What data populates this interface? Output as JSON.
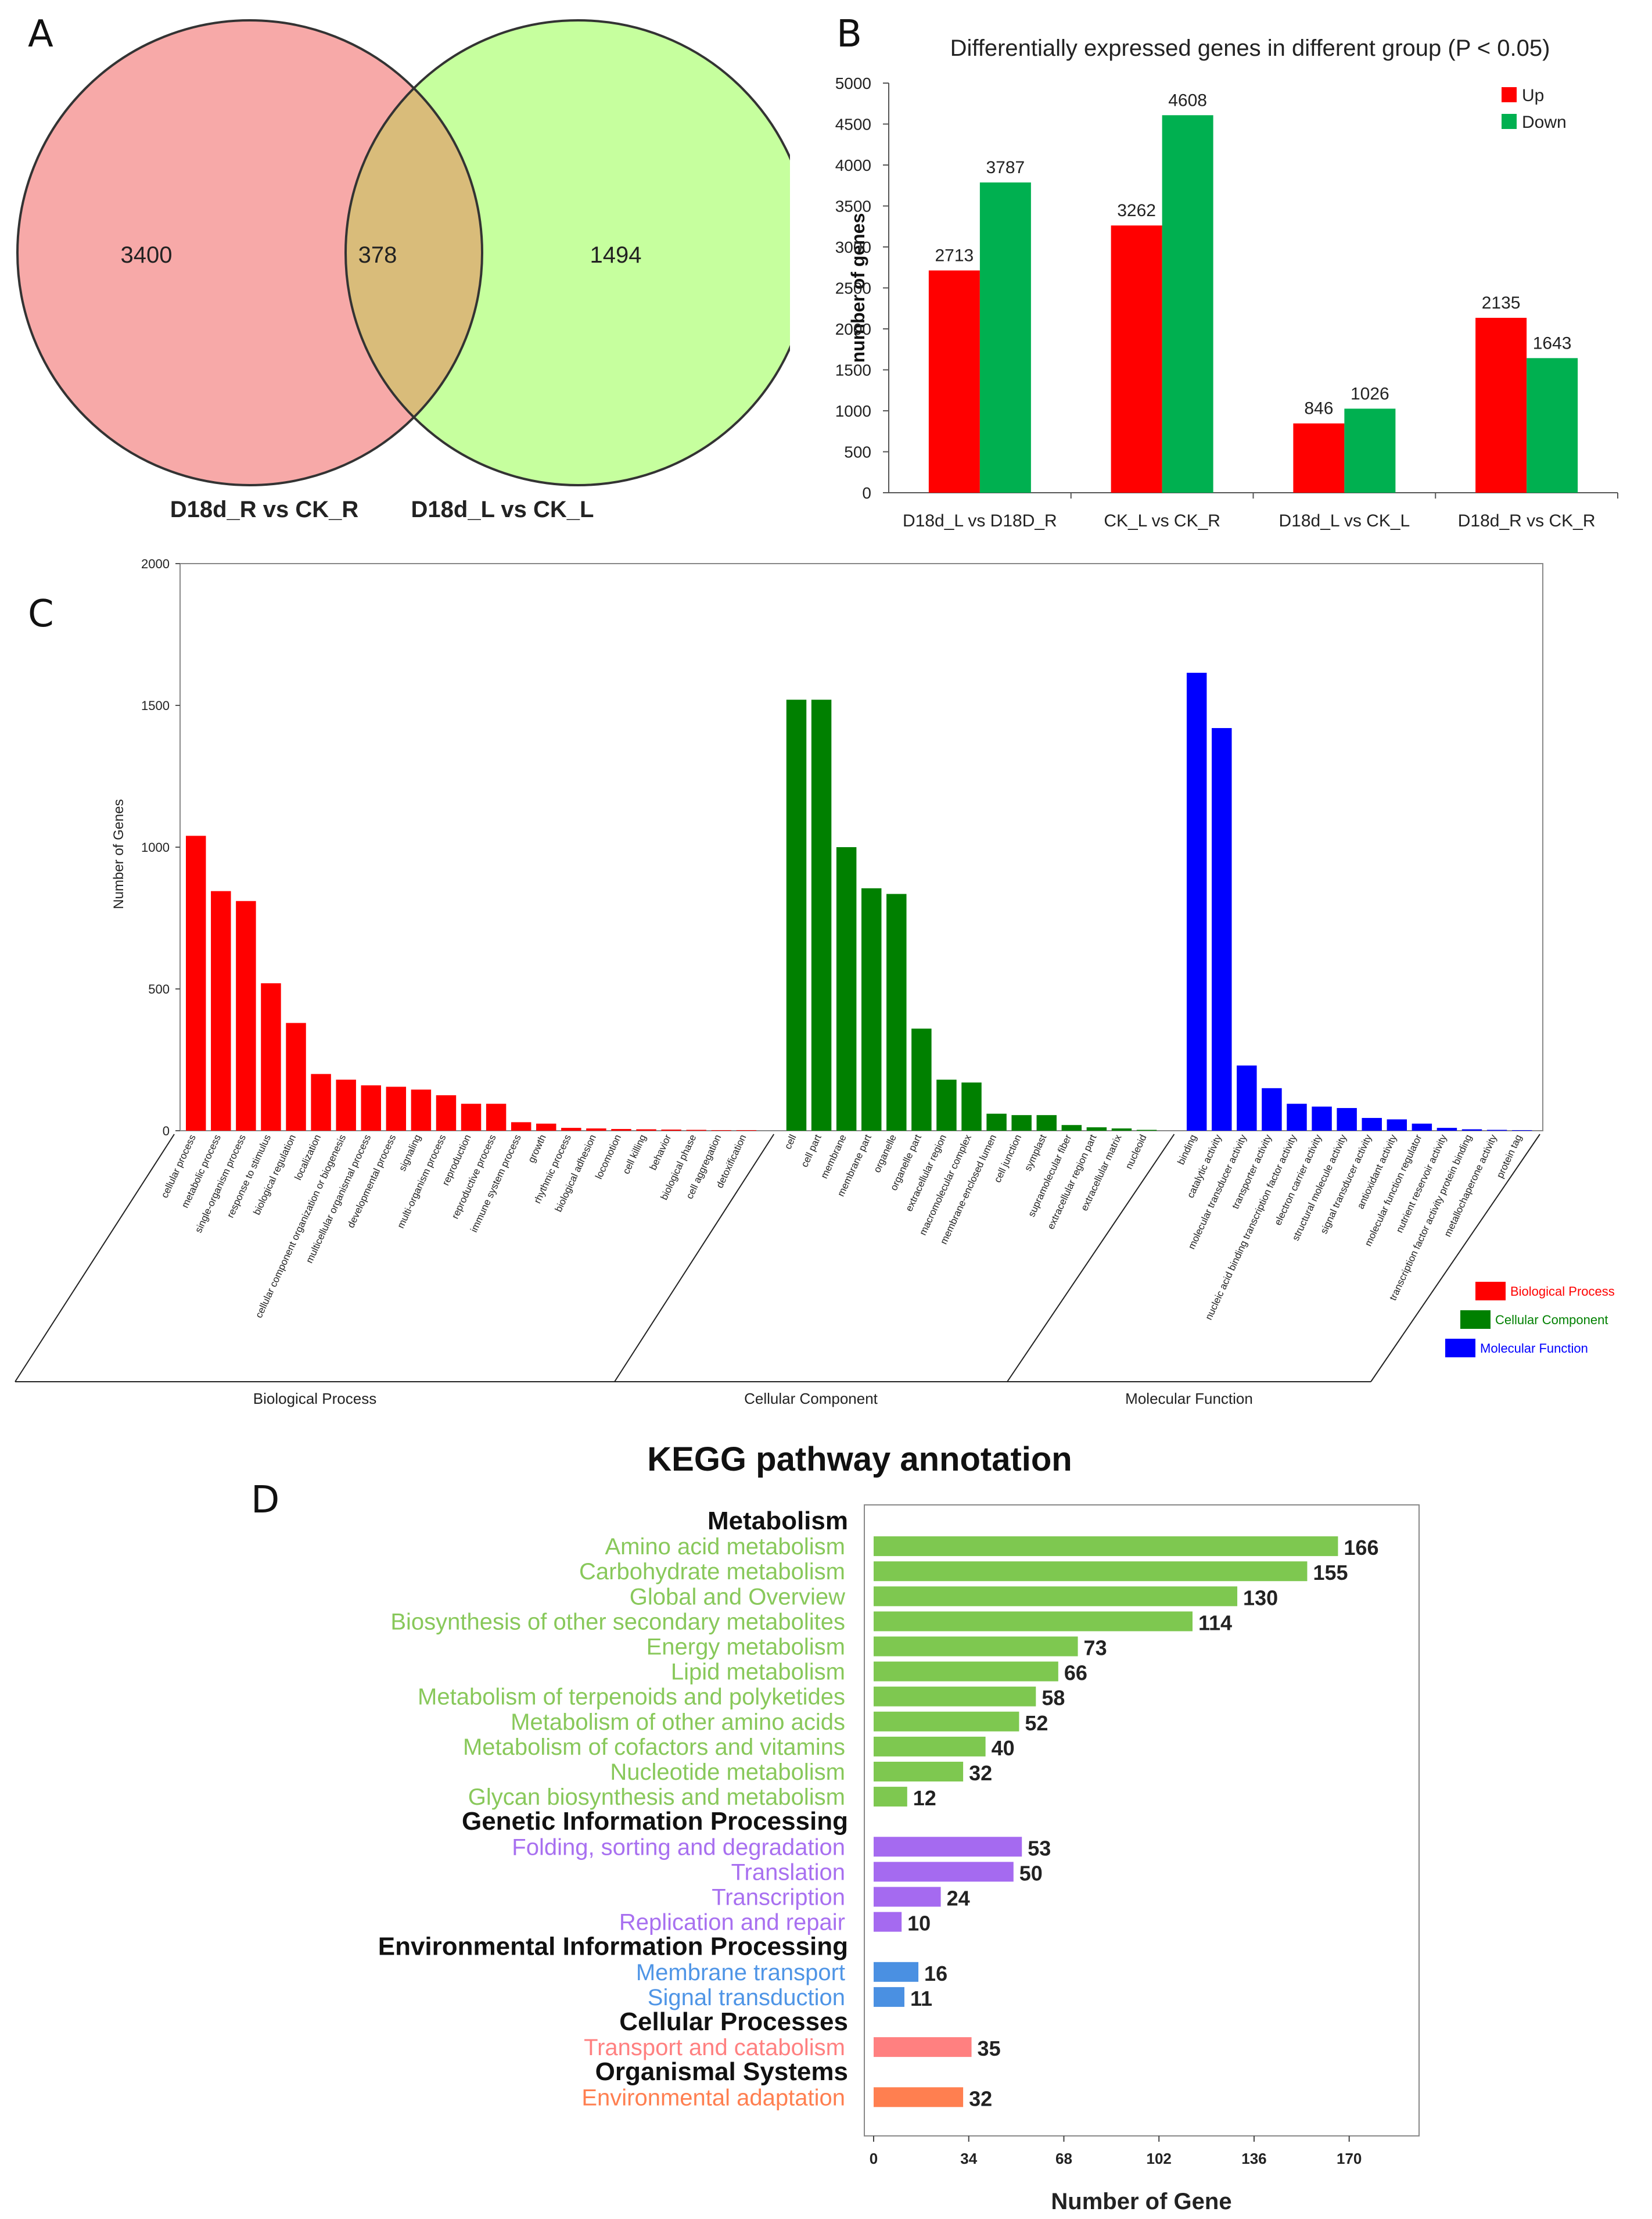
{
  "panels": {
    "a": "A",
    "b": "B",
    "c": "C",
    "d": "D"
  },
  "chart_data": [
    {
      "type": "venn",
      "sets": [
        {
          "label": "D18d_R vs CK_R",
          "only": "3400",
          "color": "#f7a9a8"
        },
        {
          "label": "D18d_L vs CK_L",
          "only": "1494",
          "color": "#c6ff9e"
        }
      ],
      "intersection": "378",
      "intersection_color": "#d9bc7a"
    },
    {
      "type": "bar",
      "title": "Differentially expressed genes in different group (P < 0.05)",
      "ylabel": "number of genes",
      "xlabel": "",
      "ylim": [
        0,
        5000
      ],
      "yticks": [
        "0",
        "500",
        "1000",
        "1500",
        "2000",
        "2500",
        "3000",
        "3500",
        "4000",
        "4500",
        "5000"
      ],
      "categories": [
        "D18d_L vs D18D_R",
        "CK_L vs CK_R",
        "D18d_L vs CK_L",
        "D18d_R vs CK_R"
      ],
      "series": [
        {
          "name": "Up",
          "color": "#ff0000",
          "values": [
            2713,
            3262,
            846,
            2135
          ],
          "labels": [
            "2713",
            "3262",
            "846",
            "2135"
          ]
        },
        {
          "name": "Down",
          "color": "#00b050",
          "values": [
            3787,
            4608,
            1026,
            1643
          ],
          "labels": [
            "3787",
            "4608",
            "1026",
            "1643"
          ]
        }
      ],
      "legend": "top-right"
    },
    {
      "type": "bar",
      "title": "",
      "ylabel": "Number of Genes",
      "ylim": [
        0,
        2000
      ],
      "yticks": [
        "0",
        "500",
        "1000",
        "1500",
        "2000"
      ],
      "groups": [
        {
          "name": "Biological Process",
          "color": "#ff0000",
          "categories": [
            "cellular process",
            "metabolic process",
            "single-organism process",
            "response to stimulus",
            "biological regulation",
            "localization",
            "cellular component organization or biogenesis",
            "multicellular organismal process",
            "developmental process",
            "signaling",
            "multi-organism process",
            "reproduction",
            "reproductive process",
            "immune system process",
            "growth",
            "rhythmic process",
            "biological adhesion",
            "locomotion",
            "cell killing",
            "behavior",
            "biological phase",
            "cell aggregation",
            "detoxification"
          ],
          "values": [
            1040,
            845,
            810,
            520,
            380,
            200,
            180,
            160,
            155,
            145,
            125,
            95,
            95,
            30,
            25,
            10,
            8,
            6,
            5,
            4,
            3,
            2,
            2
          ]
        },
        {
          "name": "Cellular Component",
          "color": "#008000",
          "categories": [
            "cell",
            "cell part",
            "membrane",
            "membrane part",
            "organelle",
            "organelle part",
            "extracellular region",
            "macromolecular complex",
            "membrane-enclosed lumen",
            "cell junction",
            "symplast",
            "supramolecular fiber",
            "extracellular region part",
            "extracellular matrix",
            "nucleoid"
          ],
          "values": [
            1520,
            1520,
            1000,
            855,
            835,
            360,
            180,
            170,
            60,
            55,
            55,
            20,
            12,
            8,
            3
          ]
        },
        {
          "name": "Molecular Function",
          "color": "#0000ff",
          "categories": [
            "binding",
            "catalytic activity",
            "molecular transducer activity",
            "transporter activity",
            "nucleic acid binding transcription factor activity",
            "electron carrier activity",
            "structural molecule activity",
            "signal transducer activity",
            "antioxidant activity",
            "molecular function regulator",
            "nutrient reservoir activity",
            "transcription factor activity protein binding",
            "metallochaperone activity",
            "protein tag"
          ],
          "values": [
            1615,
            1420,
            230,
            150,
            95,
            85,
            80,
            45,
            40,
            25,
            10,
            5,
            3,
            2
          ]
        }
      ],
      "legend": "right"
    },
    {
      "type": "bar",
      "orientation": "horizontal",
      "title": "KEGG pathway annotation",
      "xlabel": "Number of Gene",
      "xlim": [
        0,
        190
      ],
      "xticks": [
        "0",
        "34",
        "68",
        "102",
        "136",
        "170"
      ],
      "groups": [
        {
          "name": "Metabolism",
          "color": "#7ec850",
          "label_color": "#88c85a",
          "categories": [
            "Amino acid metabolism",
            "Carbohydrate metabolism",
            "Global and Overview",
            "Biosynthesis of other secondary metabolites",
            "Energy metabolism",
            "Lipid metabolism",
            "Metabolism of terpenoids and polyketides",
            "Metabolism of other amino acids",
            "Metabolism of cofactors and vitamins",
            "Nucleotide metabolism",
            "Glycan biosynthesis and metabolism"
          ],
          "values": [
            166,
            155,
            130,
            114,
            73,
            66,
            58,
            52,
            40,
            32,
            12
          ],
          "labels": [
            "166",
            "155",
            "130",
            "114",
            "73",
            "66",
            "58",
            "52",
            "40",
            "32",
            "12"
          ]
        },
        {
          "name": "Genetic Information Processing",
          "color": "#a56af0",
          "label_color": "#a870f0",
          "categories": [
            "Folding, sorting and degradation",
            "Translation",
            "Transcription",
            "Replication and repair"
          ],
          "values": [
            53,
            50,
            24,
            10
          ],
          "labels": [
            "53",
            "50",
            "24",
            "10"
          ]
        },
        {
          "name": "Environmental Information Processing",
          "color": "#4a90e2",
          "label_color": "#4f95e6",
          "categories": [
            "Membrane transport",
            "Signal transduction"
          ],
          "values": [
            16,
            11
          ],
          "labels": [
            "16",
            "11"
          ]
        },
        {
          "name": "Cellular Processes",
          "color": "#ff8080",
          "label_color": "#ff8080",
          "categories": [
            "Transport and catabolism"
          ],
          "values": [
            35
          ],
          "labels": [
            "35"
          ]
        },
        {
          "name": "Organismal Systems",
          "color": "#ff7f50",
          "label_color": "#ff7f50",
          "categories": [
            "Environmental adaptation"
          ],
          "values": [
            32
          ],
          "labels": [
            "32"
          ]
        }
      ]
    }
  ]
}
